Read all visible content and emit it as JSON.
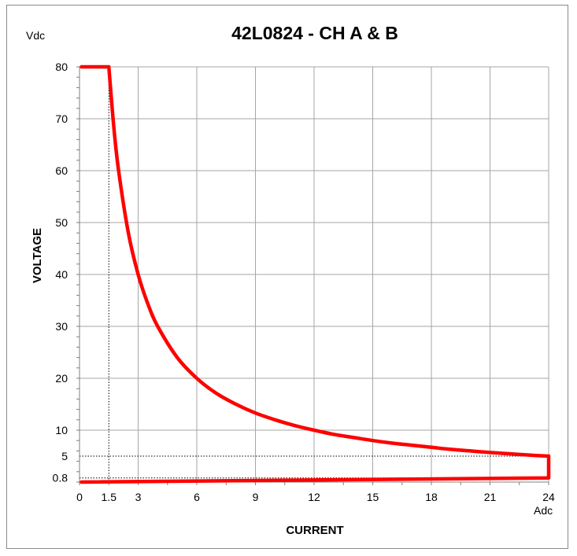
{
  "chart_data": {
    "type": "line",
    "title": "42L0824 - CH A & B",
    "xlabel": "CURRENT",
    "ylabel": "VOLTAGE",
    "x_unit": "Adc",
    "y_unit": "Vdc",
    "xlim": [
      0,
      24
    ],
    "ylim": [
      0,
      80
    ],
    "x_ticks": [
      0,
      1.5,
      3,
      6,
      9,
      12,
      15,
      18,
      21,
      24
    ],
    "y_ticks": [
      0.8,
      5,
      10,
      20,
      30,
      40,
      50,
      60,
      70,
      80
    ],
    "x_tick_labels": [
      "0",
      "1.5",
      "3",
      "6",
      "9",
      "12",
      "15",
      "18",
      "21",
      "24"
    ],
    "y_tick_labels": [
      "0.8",
      "5",
      "10",
      "20",
      "30",
      "40",
      "50",
      "60",
      "70",
      "80"
    ],
    "grid": true,
    "legend": "none",
    "colors": {
      "curve": "#ff0000",
      "grid": "#a6a6a6",
      "reference": "#000000"
    },
    "series": [
      {
        "points": [
          [
            0.1,
            80
          ],
          [
            1.5,
            80
          ],
          [
            1.75,
            68.6
          ],
          [
            2.0,
            60
          ],
          [
            2.5,
            48
          ],
          [
            3,
            40
          ],
          [
            3.5,
            34.3
          ],
          [
            4,
            30
          ],
          [
            5,
            24
          ],
          [
            6,
            20
          ],
          [
            7,
            17.1
          ],
          [
            8,
            15
          ],
          [
            9,
            13.3
          ],
          [
            10,
            12
          ],
          [
            11,
            10.9
          ],
          [
            12,
            10
          ],
          [
            13,
            9.2
          ],
          [
            14,
            8.6
          ],
          [
            15,
            8
          ],
          [
            16,
            7.5
          ],
          [
            17,
            7.1
          ],
          [
            18,
            6.7
          ],
          [
            19,
            6.3
          ],
          [
            20,
            6
          ],
          [
            21,
            5.7
          ],
          [
            22,
            5.45
          ],
          [
            23,
            5.2
          ],
          [
            24,
            5
          ],
          [
            24,
            0.8
          ],
          [
            0.1,
            0
          ]
        ]
      }
    ],
    "reference_lines": [
      {
        "x": 1.5,
        "y_from": 0,
        "y_to": 80
      },
      {
        "y": 5,
        "x_from": 0,
        "x_to": 24
      },
      {
        "y": 0.8,
        "x_from": 0,
        "x_to": 24
      }
    ]
  }
}
